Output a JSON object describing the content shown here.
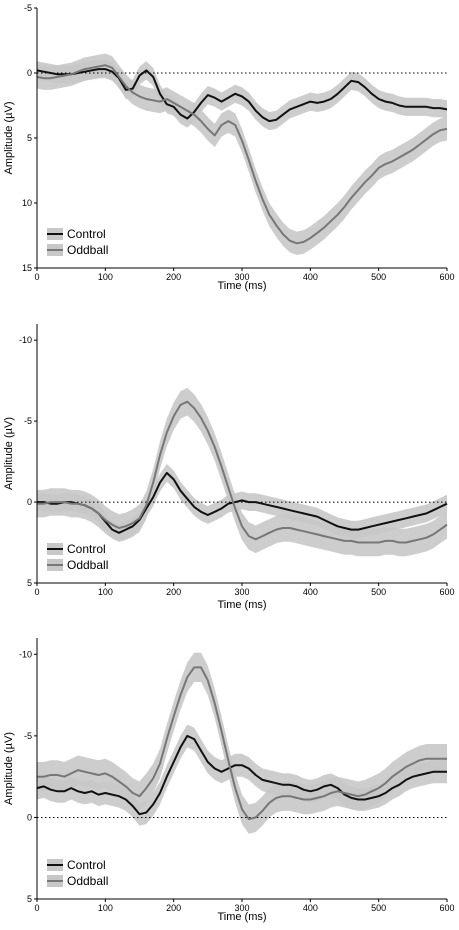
{
  "chart_data": [
    {
      "type": "line",
      "title": "",
      "xlabel": "Time (ms)",
      "ylabel": "Amplitude (µV)",
      "xlim": [
        0,
        600
      ],
      "ylim": [
        -5,
        15
      ],
      "y_inverted": true,
      "x_ticks": [
        0,
        100,
        200,
        300,
        400,
        500,
        600
      ],
      "y_ticks": [
        -5,
        0,
        5,
        10,
        15
      ],
      "legend_position": "bottom-left",
      "reference_line": 0,
      "series": [
        {
          "name": "Control",
          "color": "#111111",
          "band_color": "#c8c8c8",
          "x": [
            0,
            10,
            20,
            30,
            40,
            50,
            60,
            70,
            80,
            90,
            100,
            110,
            120,
            130,
            140,
            150,
            160,
            170,
            180,
            190,
            200,
            210,
            220,
            230,
            240,
            250,
            260,
            270,
            280,
            290,
            300,
            310,
            320,
            330,
            340,
            350,
            360,
            370,
            380,
            390,
            400,
            410,
            420,
            430,
            440,
            450,
            460,
            470,
            480,
            490,
            500,
            510,
            520,
            530,
            540,
            550,
            560,
            570,
            580,
            590,
            600
          ],
          "y": [
            -0.2,
            -0.1,
            0,
            0.1,
            0.1,
            0.1,
            0,
            -0.1,
            -0.2,
            -0.3,
            -0.3,
            -0.1,
            0.4,
            1.3,
            1.2,
            0.2,
            -0.2,
            0.3,
            1.6,
            2.4,
            2.6,
            3.2,
            3.5,
            3.0,
            2.3,
            1.7,
            1.9,
            2.2,
            1.9,
            1.6,
            1.8,
            2.2,
            2.9,
            3.4,
            3.7,
            3.6,
            3.2,
            2.8,
            2.6,
            2.4,
            2.2,
            2.3,
            2.2,
            2.0,
            1.6,
            1.1,
            0.6,
            0.7,
            1.1,
            1.6,
            2.0,
            2.2,
            2.3,
            2.5,
            2.6,
            2.6,
            2.6,
            2.6,
            2.7,
            2.7,
            2.8
          ],
          "band_halfwidth": 0.7
        },
        {
          "name": "Oddball",
          "color": "#777777",
          "band_color": "#c8c8c8",
          "x": [
            0,
            10,
            20,
            30,
            40,
            50,
            60,
            70,
            80,
            90,
            100,
            110,
            120,
            130,
            140,
            150,
            160,
            170,
            180,
            190,
            200,
            210,
            220,
            230,
            240,
            250,
            260,
            270,
            280,
            290,
            300,
            310,
            320,
            330,
            340,
            350,
            360,
            370,
            380,
            390,
            400,
            410,
            420,
            430,
            440,
            450,
            460,
            470,
            480,
            490,
            500,
            510,
            520,
            530,
            540,
            550,
            560,
            570,
            580,
            590,
            600
          ],
          "y": [
            0.3,
            0.4,
            0.4,
            0.3,
            0.2,
            0.1,
            -0.1,
            -0.3,
            -0.4,
            -0.5,
            -0.6,
            -0.4,
            0.3,
            1.0,
            1.5,
            1.8,
            2.0,
            2.1,
            2.2,
            2.0,
            2.3,
            2.6,
            2.9,
            3.2,
            3.7,
            4.3,
            4.8,
            4.0,
            3.7,
            4.0,
            5.2,
            6.7,
            8.3,
            9.7,
            10.9,
            11.7,
            12.4,
            12.9,
            13.1,
            13.0,
            12.7,
            12.3,
            11.9,
            11.4,
            10.9,
            10.3,
            9.6,
            9.0,
            8.4,
            7.9,
            7.3,
            7.0,
            6.8,
            6.5,
            6.2,
            5.9,
            5.5,
            5.1,
            4.7,
            4.4,
            4.3
          ],
          "band_halfwidth": 0.9
        }
      ]
    },
    {
      "type": "line",
      "title": "",
      "xlabel": "Time (ms)",
      "ylabel": "Amplitude (µV)",
      "xlim": [
        0,
        600
      ],
      "ylim": [
        -11,
        5
      ],
      "y_inverted": true,
      "x_ticks": [
        0,
        100,
        200,
        300,
        400,
        500,
        600
      ],
      "y_ticks": [
        -10,
        -5,
        0,
        5
      ],
      "legend_position": "bottom-left",
      "reference_line": 0,
      "series": [
        {
          "name": "Control",
          "color": "#111111",
          "band_color": "#c8c8c8",
          "x": [
            0,
            10,
            20,
            30,
            40,
            50,
            60,
            70,
            80,
            90,
            100,
            110,
            120,
            130,
            140,
            150,
            160,
            170,
            180,
            190,
            200,
            210,
            220,
            230,
            240,
            250,
            260,
            270,
            280,
            290,
            300,
            310,
            320,
            330,
            340,
            350,
            360,
            370,
            380,
            390,
            400,
            410,
            420,
            430,
            440,
            450,
            460,
            470,
            480,
            490,
            500,
            510,
            520,
            530,
            540,
            550,
            560,
            570,
            580,
            590,
            600
          ],
          "y": [
            0,
            0,
            0.1,
            0.1,
            0,
            0,
            0.1,
            0.2,
            0.4,
            0.7,
            1.2,
            1.7,
            1.9,
            1.7,
            1.5,
            1.1,
            0.4,
            -0.3,
            -1.2,
            -1.8,
            -1.4,
            -0.7,
            -0.2,
            0.3,
            0.6,
            0.8,
            0.6,
            0.4,
            0.1,
            0,
            -0.1,
            0,
            0,
            0.1,
            0.2,
            0.3,
            0.4,
            0.5,
            0.6,
            0.7,
            0.8,
            0.9,
            1.1,
            1.3,
            1.5,
            1.6,
            1.7,
            1.7,
            1.6,
            1.5,
            1.4,
            1.3,
            1.2,
            1.1,
            1.0,
            0.9,
            0.8,
            0.7,
            0.5,
            0.3,
            0.1
          ],
          "band_halfwidth": 0.55
        },
        {
          "name": "Oddball",
          "color": "#777777",
          "band_color": "#c8c8c8",
          "x": [
            0,
            10,
            20,
            30,
            40,
            50,
            60,
            70,
            80,
            90,
            100,
            110,
            120,
            130,
            140,
            150,
            160,
            170,
            180,
            190,
            200,
            210,
            220,
            230,
            240,
            250,
            260,
            270,
            280,
            290,
            300,
            310,
            320,
            330,
            340,
            350,
            360,
            370,
            380,
            390,
            400,
            410,
            420,
            430,
            440,
            450,
            460,
            470,
            480,
            490,
            500,
            510,
            520,
            530,
            540,
            550,
            560,
            570,
            580,
            590,
            600
          ],
          "y": [
            0.1,
            0.1,
            0,
            0,
            0,
            0.1,
            0.1,
            0.2,
            0.4,
            0.7,
            1.1,
            1.4,
            1.6,
            1.5,
            1.3,
            1.0,
            0.2,
            -1.2,
            -2.9,
            -4.3,
            -5.3,
            -6.0,
            -6.2,
            -5.8,
            -5.2,
            -4.4,
            -3.4,
            -2.2,
            -0.9,
            0.4,
            1.5,
            2.1,
            2.3,
            2.1,
            1.9,
            1.7,
            1.6,
            1.6,
            1.7,
            1.8,
            1.9,
            2.0,
            2.1,
            2.2,
            2.3,
            2.4,
            2.4,
            2.5,
            2.5,
            2.5,
            2.5,
            2.4,
            2.4,
            2.5,
            2.5,
            2.4,
            2.3,
            2.2,
            2.0,
            1.7,
            1.4
          ],
          "band_halfwidth": 0.85
        }
      ]
    },
    {
      "type": "line",
      "title": "",
      "xlabel": "Time (ms)",
      "ylabel": "Amplitude (µV)",
      "xlim": [
        0,
        600
      ],
      "ylim": [
        -11,
        5
      ],
      "y_inverted": true,
      "x_ticks": [
        0,
        100,
        200,
        300,
        400,
        500,
        600
      ],
      "y_ticks": [
        -10,
        -5,
        0,
        5
      ],
      "legend_position": "bottom-left",
      "reference_line": 0,
      "series": [
        {
          "name": "Control",
          "color": "#111111",
          "band_color": "#c8c8c8",
          "x": [
            0,
            10,
            20,
            30,
            40,
            50,
            60,
            70,
            80,
            90,
            100,
            110,
            120,
            130,
            140,
            150,
            160,
            170,
            180,
            190,
            200,
            210,
            220,
            230,
            240,
            250,
            260,
            270,
            280,
            290,
            300,
            310,
            320,
            330,
            340,
            350,
            360,
            370,
            380,
            390,
            400,
            410,
            420,
            430,
            440,
            450,
            460,
            470,
            480,
            490,
            500,
            510,
            520,
            530,
            540,
            550,
            560,
            570,
            580,
            590,
            600
          ],
          "y": [
            -1.8,
            -1.9,
            -1.7,
            -1.6,
            -1.6,
            -1.8,
            -1.6,
            -1.5,
            -1.6,
            -1.4,
            -1.5,
            -1.4,
            -1.3,
            -1.1,
            -0.7,
            -0.2,
            -0.3,
            -0.8,
            -1.5,
            -2.5,
            -3.4,
            -4.3,
            -5.0,
            -4.8,
            -4.1,
            -3.4,
            -3.0,
            -2.8,
            -3.0,
            -3.2,
            -3.2,
            -3.0,
            -2.6,
            -2.3,
            -2.2,
            -2.1,
            -2.0,
            -2.0,
            -1.9,
            -1.7,
            -1.6,
            -1.7,
            -1.9,
            -2.0,
            -1.8,
            -1.4,
            -1.2,
            -1.1,
            -1.1,
            -1.2,
            -1.3,
            -1.5,
            -1.8,
            -2.0,
            -2.3,
            -2.5,
            -2.6,
            -2.7,
            -2.8,
            -2.8,
            -2.8
          ],
          "band_halfwidth": 0.7
        },
        {
          "name": "Oddball",
          "color": "#777777",
          "band_color": "#c8c8c8",
          "x": [
            0,
            10,
            20,
            30,
            40,
            50,
            60,
            70,
            80,
            90,
            100,
            110,
            120,
            130,
            140,
            150,
            160,
            170,
            180,
            190,
            200,
            210,
            220,
            230,
            240,
            250,
            260,
            270,
            280,
            290,
            300,
            310,
            320,
            330,
            340,
            350,
            360,
            370,
            380,
            390,
            400,
            410,
            420,
            430,
            440,
            450,
            460,
            470,
            480,
            490,
            500,
            510,
            520,
            530,
            540,
            550,
            560,
            570,
            580,
            590,
            600
          ],
          "y": [
            -2.5,
            -2.5,
            -2.6,
            -2.6,
            -2.5,
            -2.7,
            -2.9,
            -2.8,
            -2.7,
            -2.6,
            -2.7,
            -2.5,
            -2.2,
            -1.9,
            -1.5,
            -1.3,
            -1.8,
            -2.4,
            -3.3,
            -4.8,
            -6.2,
            -7.5,
            -8.6,
            -9.2,
            -9.2,
            -8.4,
            -7.0,
            -5.3,
            -3.5,
            -1.8,
            -0.5,
            0.1,
            0,
            -0.4,
            -0.9,
            -1.2,
            -1.3,
            -1.3,
            -1.2,
            -1.1,
            -1.1,
            -1.2,
            -1.3,
            -1.5,
            -1.6,
            -1.5,
            -1.4,
            -1.3,
            -1.4,
            -1.6,
            -1.8,
            -2.1,
            -2.5,
            -2.8,
            -3.1,
            -3.3,
            -3.5,
            -3.6,
            -3.6,
            -3.6,
            -3.6
          ],
          "band_halfwidth": 0.9
        }
      ]
    }
  ]
}
